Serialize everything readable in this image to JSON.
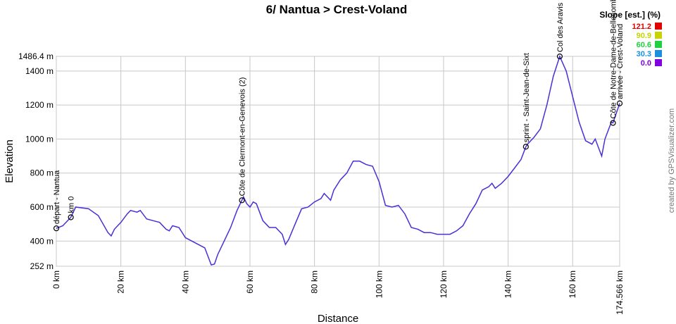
{
  "chart_data": {
    "type": "line",
    "title": "6/ Nantua > Crest-Voland",
    "x_label": "Distance",
    "y_label": "Elevation",
    "credit": "created by GPSVisualizer.com",
    "xlim": [
      0,
      174.566
    ],
    "ylim": [
      252,
      1486.4
    ],
    "xticks": [
      {
        "value": 0,
        "label": "0 km"
      },
      {
        "value": 20,
        "label": "20 km"
      },
      {
        "value": 40,
        "label": "40 km"
      },
      {
        "value": 60,
        "label": "60 km"
      },
      {
        "value": 80,
        "label": "80 km"
      },
      {
        "value": 100,
        "label": "100 km"
      },
      {
        "value": 120,
        "label": "120 km"
      },
      {
        "value": 140,
        "label": "140 km"
      },
      {
        "value": 160,
        "label": "160 km"
      },
      {
        "value": 174.566,
        "label": "174.566 km"
      }
    ],
    "yticks": [
      {
        "value": 252,
        "label": "252 m"
      },
      {
        "value": 400,
        "label": "400 m"
      },
      {
        "value": 600,
        "label": "600 m"
      },
      {
        "value": 800,
        "label": "800 m"
      },
      {
        "value": 1000,
        "label": "1000 m"
      },
      {
        "value": 1200,
        "label": "1200 m"
      },
      {
        "value": 1400,
        "label": "1400 m"
      },
      {
        "value": 1486.4,
        "label": "1486.4 m"
      }
    ],
    "grid": true,
    "x": [
      0,
      2,
      4.5,
      6,
      10,
      13,
      16,
      17,
      18,
      20,
      22,
      23,
      25,
      26,
      28,
      30,
      32,
      34,
      35,
      36,
      38,
      40,
      42,
      44,
      46,
      48,
      49,
      50,
      52,
      54,
      56,
      57.5,
      58,
      59,
      60,
      61,
      62,
      64,
      66,
      68,
      70,
      71,
      72,
      74,
      76,
      78,
      80,
      82,
      83,
      84,
      85,
      86,
      88,
      90,
      92,
      94,
      96,
      98,
      100,
      102,
      104,
      106,
      108,
      110,
      112,
      114,
      116,
      118,
      120,
      122,
      124,
      126,
      128,
      130,
      132,
      134,
      135,
      136,
      138,
      140,
      142,
      144,
      145.5,
      146,
      148,
      150,
      152,
      154,
      156,
      158,
      160,
      162,
      164,
      166,
      167,
      169,
      170,
      172,
      172.5,
      174.566
    ],
    "series": [
      {
        "name": "Elevation",
        "color": "#4a2fd6",
        "values": [
          475,
          490,
          540,
          600,
          590,
          550,
          450,
          430,
          470,
          510,
          560,
          580,
          570,
          580,
          530,
          520,
          510,
          470,
          460,
          490,
          480,
          420,
          400,
          380,
          360,
          260,
          265,
          320,
          400,
          480,
          580,
          640,
          660,
          620,
          600,
          630,
          620,
          520,
          480,
          480,
          440,
          380,
          410,
          500,
          590,
          600,
          630,
          650,
          680,
          660,
          640,
          700,
          760,
          800,
          870,
          870,
          850,
          840,
          750,
          610,
          600,
          610,
          560,
          480,
          470,
          450,
          450,
          440,
          440,
          440,
          460,
          490,
          560,
          620,
          700,
          720,
          740,
          710,
          740,
          780,
          830,
          880,
          955,
          970,
          1010,
          1060,
          1200,
          1370,
          1486,
          1400,
          1250,
          1100,
          990,
          970,
          1000,
          900,
          1000,
          1100,
          1095,
          1210
        ]
      }
    ],
    "waypoints": [
      {
        "name": "départ - Nantua",
        "x": 0,
        "y": 475
      },
      {
        "name": "km 0",
        "x": 4.5,
        "y": 540
      },
      {
        "name": "Côte de Clermont-en-Genevois (2)",
        "x": 57.5,
        "y": 640
      },
      {
        "name": "sprint - Saint-Jean-de-Sixt",
        "x": 145.5,
        "y": 955
      },
      {
        "name": "Col des Aravis",
        "x": 156,
        "y": 1486
      },
      {
        "name": "Côte de Notre-Dame-de-Bellecombe",
        "x": 172.5,
        "y": 1095
      },
      {
        "name": "arrivée - Crest-Voland",
        "x": 174.566,
        "y": 1210
      }
    ],
    "legend": {
      "title": "Slope [est.] (%)",
      "items": [
        {
          "label": "121.2",
          "color": "#e00000"
        },
        {
          "label": "90.9",
          "color": "#c8d400"
        },
        {
          "label": "60.6",
          "color": "#20d040"
        },
        {
          "label": "30.3",
          "color": "#1890e0"
        },
        {
          "label": "0.0",
          "color": "#8000e0"
        }
      ]
    }
  }
}
